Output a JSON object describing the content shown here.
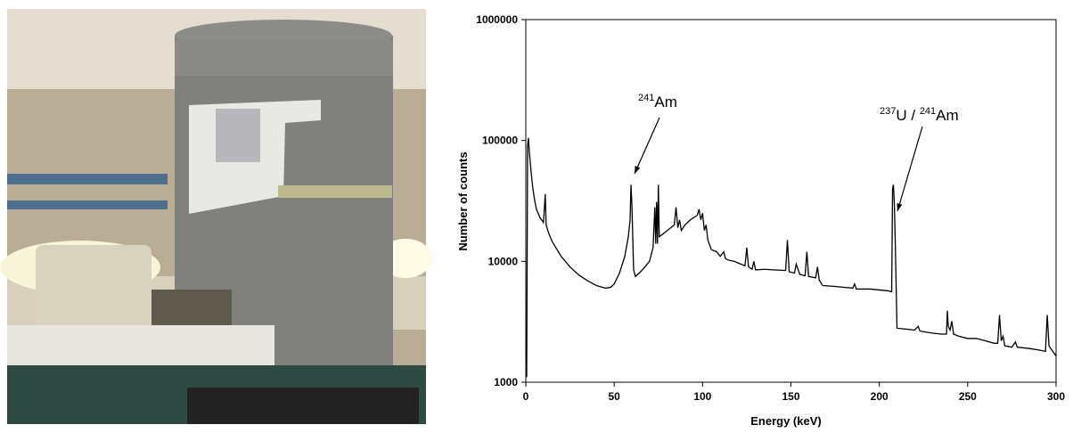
{
  "chart_data": {
    "type": "line",
    "yscale": "log",
    "color": "#000000",
    "x_label": "Energy (keV)",
    "y_label": "Number of counts",
    "xlim": [
      0,
      300
    ],
    "xticks": [
      0,
      50,
      100,
      150,
      200,
      250,
      300
    ],
    "ylim": [
      1000,
      1000000
    ],
    "yticks": [
      1000,
      10000,
      100000,
      1000000
    ],
    "annotations": [
      [
        "241",
        "Am"
      ],
      [
        "237",
        "U / ",
        "241",
        "Am"
      ]
    ],
    "x": [
      0.5,
      1,
      1.5,
      2,
      3,
      4,
      5,
      6,
      8,
      10,
      11,
      11.5,
      13,
      15,
      20,
      25,
      30,
      35,
      40,
      45,
      48,
      50,
      53,
      56,
      58,
      59,
      59.5,
      60,
      61,
      62,
      65,
      70,
      72,
      73,
      73.5,
      74,
      74.5,
      75,
      75.5,
      78,
      80,
      84,
      85,
      86,
      87,
      88,
      90,
      93,
      95,
      97,
      98,
      99,
      100,
      101,
      102,
      103,
      105,
      108,
      110,
      112,
      113,
      115,
      118,
      120,
      124,
      125,
      126,
      128,
      129,
      130,
      135,
      140,
      147,
      148,
      149,
      152,
      153,
      155,
      158,
      159,
      160,
      164,
      165,
      166,
      168,
      175,
      180,
      185,
      186,
      187,
      195,
      200,
      205,
      207,
      207.5,
      208,
      208.5,
      209,
      210,
      215,
      220,
      222,
      223,
      230,
      235,
      238,
      238.5,
      239,
      240,
      241,
      242,
      245,
      250,
      255,
      260,
      265,
      267,
      268,
      269,
      270,
      271,
      275,
      277,
      278,
      285,
      290,
      294,
      295,
      296,
      297,
      300
    ],
    "values": [
      1100,
      90000,
      105000,
      80000,
      55000,
      40000,
      32000,
      27000,
      23000,
      21000,
      36000,
      20000,
      17000,
      14500,
      11000,
      9000,
      7700,
      6900,
      6300,
      6000,
      6100,
      6500,
      8000,
      11000,
      16000,
      22000,
      43000,
      30000,
      8500,
      7500,
      8200,
      10000,
      13000,
      28000,
      14000,
      31000,
      14000,
      43000,
      16000,
      17000,
      18000,
      20000,
      28000,
      19000,
      22000,
      18000,
      20000,
      22000,
      23000,
      24000,
      27000,
      22000,
      25000,
      18000,
      20000,
      15000,
      12500,
      12000,
      11000,
      12000,
      10500,
      10200,
      10000,
      9700,
      9200,
      13000,
      9000,
      8600,
      10000,
      8500,
      8600,
      8500,
      8400,
      15000,
      8200,
      8000,
      9500,
      7800,
      7600,
      12000,
      7500,
      7300,
      9000,
      7000,
      6300,
      6200,
      6100,
      6000,
      6500,
      5900,
      5900,
      5800,
      5700,
      5600,
      40000,
      43000,
      30000,
      15000,
      2800,
      2750,
      2700,
      2900,
      2650,
      2550,
      2500,
      2500,
      3900,
      2900,
      2700,
      3200,
      2500,
      2400,
      2300,
      2300,
      2200,
      2100,
      2100,
      3600,
      2200,
      2400,
      2000,
      1950,
      2150,
      1950,
      1900,
      1850,
      1800,
      3600,
      2000,
      1900,
      1650
    ]
  }
}
